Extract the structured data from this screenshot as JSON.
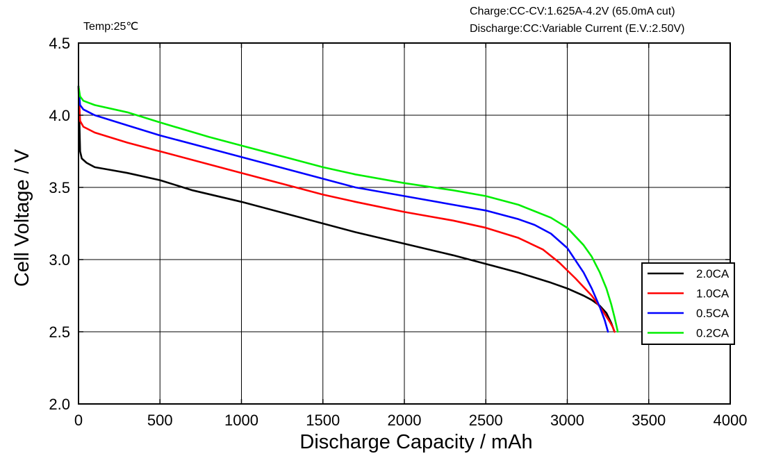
{
  "notes": {
    "temp": "Temp:25℃",
    "charge": "Charge:CC-CV:1.625A-4.2V (65.0mA cut)",
    "discharge": "Discharge:CC:Variable Current (E.V.:2.50V)"
  },
  "chart_data": {
    "type": "line",
    "title": "",
    "xlabel": "Discharge  Capacity  /  mAh",
    "ylabel": "Cell  Voltage  /  V",
    "xlim": [
      0,
      4000
    ],
    "ylim": [
      2.0,
      4.5
    ],
    "xticks": [
      "0",
      "500",
      "1000",
      "1500",
      "2000",
      "2500",
      "3000",
      "3500",
      "4000"
    ],
    "yticks": [
      "2.0",
      "2.5",
      "3.0",
      "3.5",
      "4.0",
      "4.5"
    ],
    "grid": true,
    "legend_position": "right",
    "series": [
      {
        "name": "2.0CA",
        "color": "#000000",
        "x": [
          0,
          10,
          20,
          50,
          100,
          200,
          300,
          500,
          700,
          1000,
          1300,
          1700,
          2000,
          2300,
          2500,
          2700,
          2900,
          3000,
          3100,
          3150,
          3200,
          3240,
          3270,
          3290
        ],
        "y": [
          4.2,
          3.75,
          3.7,
          3.67,
          3.64,
          3.62,
          3.6,
          3.55,
          3.48,
          3.4,
          3.31,
          3.19,
          3.11,
          3.03,
          2.97,
          2.91,
          2.84,
          2.8,
          2.75,
          2.72,
          2.68,
          2.63,
          2.56,
          2.5
        ]
      },
      {
        "name": "1.0CA",
        "color": "#ff0000",
        "x": [
          0,
          10,
          30,
          100,
          300,
          500,
          800,
          1000,
          1300,
          1500,
          1700,
          2000,
          2300,
          2500,
          2700,
          2850,
          2950,
          3050,
          3150,
          3220,
          3260,
          3280,
          3290
        ],
        "y": [
          4.2,
          3.96,
          3.92,
          3.88,
          3.81,
          3.75,
          3.66,
          3.6,
          3.51,
          3.45,
          3.4,
          3.33,
          3.27,
          3.22,
          3.15,
          3.07,
          2.98,
          2.87,
          2.75,
          2.64,
          2.57,
          2.53,
          2.5
        ]
      },
      {
        "name": "0.5CA",
        "color": "#0000ff",
        "x": [
          0,
          10,
          30,
          100,
          300,
          500,
          800,
          1000,
          1300,
          1500,
          1700,
          2000,
          2300,
          2500,
          2700,
          2800,
          2900,
          3000,
          3100,
          3150,
          3200,
          3230,
          3250
        ],
        "y": [
          4.2,
          4.07,
          4.04,
          4.0,
          3.93,
          3.86,
          3.77,
          3.71,
          3.62,
          3.56,
          3.5,
          3.44,
          3.38,
          3.34,
          3.28,
          3.24,
          3.18,
          3.08,
          2.91,
          2.8,
          2.67,
          2.58,
          2.5
        ]
      },
      {
        "name": "0.2CA",
        "color": "#00ee00",
        "x": [
          0,
          10,
          30,
          100,
          300,
          500,
          800,
          1000,
          1300,
          1500,
          1700,
          2000,
          2300,
          2500,
          2700,
          2900,
          3000,
          3100,
          3150,
          3200,
          3240,
          3270,
          3290,
          3310
        ],
        "y": [
          4.2,
          4.13,
          4.1,
          4.07,
          4.02,
          3.95,
          3.85,
          3.79,
          3.7,
          3.64,
          3.59,
          3.53,
          3.48,
          3.44,
          3.38,
          3.29,
          3.22,
          3.1,
          3.02,
          2.91,
          2.8,
          2.69,
          2.6,
          2.5
        ]
      }
    ]
  }
}
